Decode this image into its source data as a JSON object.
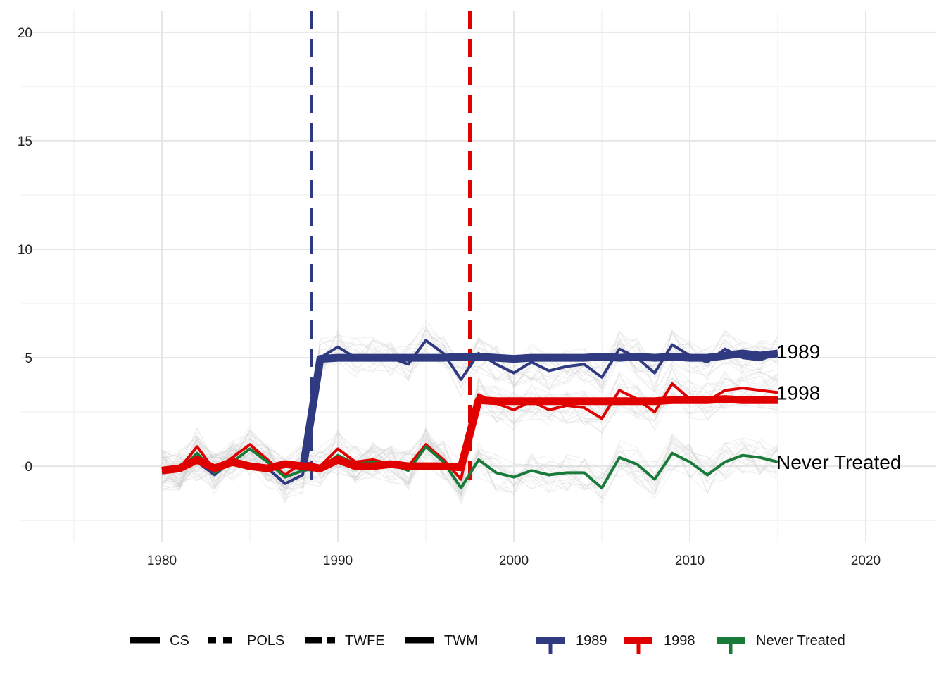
{
  "chart_data": {
    "type": "line",
    "title": "",
    "xlabel": "",
    "ylabel": "",
    "xlim": [
      1972,
      2024
    ],
    "ylim": [
      -3.5,
      21
    ],
    "x_ticks": [
      1980,
      1990,
      2000,
      2010,
      2020
    ],
    "y_ticks": [
      0,
      5,
      10,
      15,
      20
    ],
    "x_tick_labels": [
      "1980",
      "1990",
      "2000",
      "2010",
      "2020"
    ],
    "y_tick_labels": [
      "0",
      "5",
      "10",
      "15",
      "20"
    ],
    "grid": true,
    "background_lines": {
      "count": 60,
      "color": "#cccccc",
      "description_hidden": true
    },
    "years": [
      1980,
      1981,
      1982,
      1983,
      1984,
      1985,
      1986,
      1987,
      1988,
      1989,
      1990,
      1991,
      1992,
      1993,
      1994,
      1995,
      1996,
      1997,
      1998,
      1999,
      2000,
      2001,
      2002,
      2003,
      2004,
      2005,
      2006,
      2007,
      2008,
      2009,
      2010,
      2011,
      2012,
      2013,
      2014,
      2015
    ],
    "treatment_lines": [
      {
        "x": 1988.5,
        "color": "#2f3a80"
      },
      {
        "x": 1997.5,
        "color": "#e00000"
      }
    ],
    "series": [
      {
        "name": "1989",
        "color": "#2f3a80",
        "observed": [
          -0.1,
          -0.1,
          0.2,
          -0.4,
          0.3,
          0.1,
          -0.1,
          -0.8,
          -0.4,
          5.0,
          5.5,
          5.0,
          5.1,
          5.0,
          4.7,
          5.8,
          5.2,
          4.0,
          5.2,
          4.7,
          4.3,
          4.8,
          4.4,
          4.6,
          4.7,
          4.1,
          5.4,
          5.0,
          4.3,
          5.6,
          5.1,
          4.8,
          5.4,
          5.0,
          4.9,
          5.2
        ],
        "estimate": [
          null,
          null,
          null,
          null,
          null,
          null,
          null,
          null,
          -0.2,
          4.95,
          5.0,
          5.0,
          5.0,
          5.0,
          5.0,
          5.0,
          5.0,
          5.05,
          5.05,
          5.0,
          4.95,
          5.0,
          5.0,
          5.0,
          5.0,
          5.05,
          5.0,
          5.05,
          5.0,
          5.05,
          5.0,
          5.0,
          5.1,
          5.2,
          5.1,
          5.2
        ]
      },
      {
        "name": "1998",
        "color": "#e00000",
        "observed": [
          -0.2,
          -0.1,
          0.9,
          -0.2,
          0.4,
          1.0,
          0.3,
          -0.4,
          0.2,
          0.0,
          0.8,
          0.2,
          0.3,
          0.1,
          0.0,
          1.0,
          0.3,
          -0.6,
          3.3,
          2.9,
          2.6,
          3.0,
          2.6,
          2.8,
          2.7,
          2.2,
          3.5,
          3.1,
          2.5,
          3.8,
          3.1,
          3.0,
          3.5,
          3.6,
          3.5,
          3.4
        ],
        "estimate": [
          -0.2,
          -0.1,
          0.3,
          -0.1,
          0.2,
          0.0,
          -0.1,
          0.1,
          0.0,
          -0.1,
          0.3,
          0.0,
          0.0,
          0.1,
          0.0,
          0.0,
          0.0,
          -0.05,
          3.05,
          3.0,
          3.0,
          3.0,
          3.0,
          3.0,
          3.0,
          3.0,
          3.0,
          3.0,
          3.0,
          3.05,
          3.05,
          3.05,
          3.1,
          3.05,
          3.05,
          3.05
        ]
      },
      {
        "name": "Never Treated",
        "color": "#1a7a3a",
        "observed": [
          -0.3,
          -0.2,
          0.6,
          -0.3,
          0.2,
          0.8,
          0.2,
          -0.5,
          -0.2,
          -0.1,
          0.5,
          0.1,
          0.2,
          0.1,
          -0.2,
          0.9,
          0.2,
          -1.0,
          0.3,
          -0.3,
          -0.5,
          -0.2,
          -0.4,
          -0.3,
          -0.3,
          -1.0,
          0.4,
          0.1,
          -0.6,
          0.6,
          0.2,
          -0.4,
          0.2,
          0.5,
          0.4,
          0.2
        ],
        "estimate": null
      }
    ],
    "end_labels": [
      {
        "text": "1989",
        "y": 5.3
      },
      {
        "text": "1998",
        "y": 3.4
      },
      {
        "text": "Never Treated",
        "y": 0.2
      }
    ],
    "legend": {
      "placement": "bottom",
      "linetype_entries": [
        "CS",
        "POLS",
        "TWFE",
        "TWM"
      ],
      "color_entries": [
        {
          "label": "1989",
          "color": "#2f3a80"
        },
        {
          "label": "1998",
          "color": "#e00000"
        },
        {
          "label": "Never Treated",
          "color": "#1a7a3a"
        }
      ]
    }
  }
}
